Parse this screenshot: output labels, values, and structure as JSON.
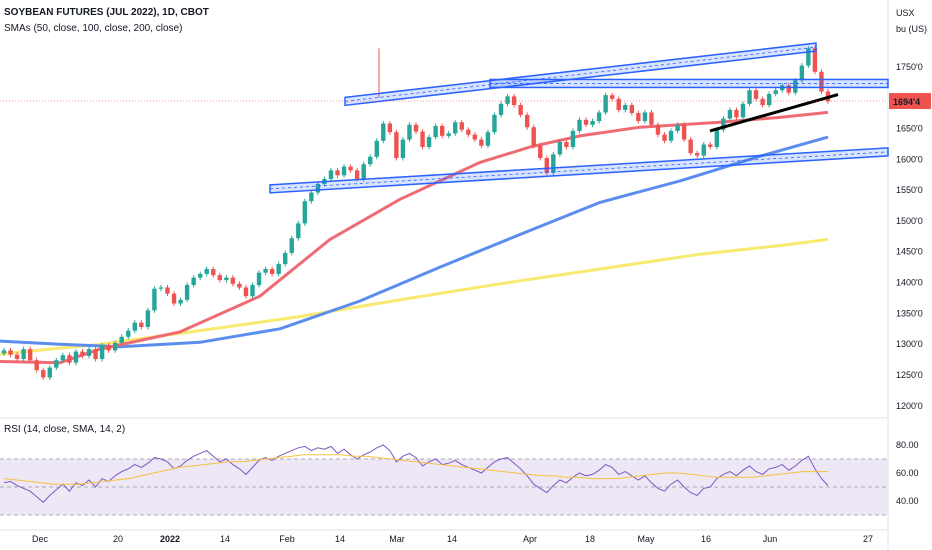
{
  "header": {
    "title": "SOYBEAN FUTURES (JUL 2022), 1D, CBOT",
    "sma_legend": "SMAs (50, close, 100, close, 200, close)",
    "rsi_legend": "RSI (14, close, SMA, 14, 2)"
  },
  "axis": {
    "currency": "USX",
    "unit": "bu (US)",
    "price_ticks": [
      "1750'0",
      "1700'0",
      "1650'0",
      "1600'0",
      "1550'0",
      "1500'0",
      "1450'0",
      "1400'0",
      "1350'0",
      "1300'0",
      "1250'0",
      "1200'0"
    ],
    "last_price": "1694'4",
    "rsi_ticks": [
      "80.00",
      "60.00",
      "40.00"
    ],
    "time_ticks": [
      "Dec",
      "20",
      "2022",
      "14",
      "Feb",
      "14",
      "Mar",
      "14",
      "Apr",
      "18",
      "May",
      "16",
      "Jun",
      "27"
    ]
  },
  "colors": {
    "up": "#26a69a",
    "down": "#ef5350",
    "sma50": "#ef6b73",
    "sma100": "#5b8def",
    "sma200": "#f7ea6e",
    "channel": "#2962ff",
    "rsi_line": "#7e57c2",
    "rsi_ma": "#f5c242",
    "rsi_band": "#ede7f6",
    "last_price_bg": "#ef5350"
  },
  "chart_data": {
    "type": "candlestick",
    "symbol": "SOYBEAN FUTURES (JUL 2022)",
    "timeframe": "1D",
    "exchange": "CBOT",
    "price_range": [
      1190,
      1800
    ],
    "last_price": 1694.5,
    "candles": [
      [
        1285,
        1290
      ],
      [
        1290,
        1283
      ],
      [
        1283,
        1276
      ],
      [
        1276,
        1292
      ],
      [
        1292,
        1274
      ],
      [
        1274,
        1258
      ],
      [
        1258,
        1246
      ],
      [
        1246,
        1262
      ],
      [
        1262,
        1274
      ],
      [
        1274,
        1282
      ],
      [
        1282,
        1270
      ],
      [
        1270,
        1288
      ],
      [
        1288,
        1281
      ],
      [
        1281,
        1292
      ],
      [
        1292,
        1276
      ],
      [
        1276,
        1298
      ],
      [
        1298,
        1290
      ],
      [
        1290,
        1302
      ],
      [
        1302,
        1312
      ],
      [
        1312,
        1322
      ],
      [
        1322,
        1335
      ],
      [
        1335,
        1328
      ],
      [
        1328,
        1355
      ],
      [
        1355,
        1390
      ],
      [
        1390,
        1392
      ],
      [
        1392,
        1382
      ],
      [
        1382,
        1366
      ],
      [
        1366,
        1372
      ],
      [
        1372,
        1396
      ],
      [
        1396,
        1408
      ],
      [
        1408,
        1414
      ],
      [
        1414,
        1422
      ],
      [
        1422,
        1412
      ],
      [
        1412,
        1404
      ],
      [
        1404,
        1408
      ],
      [
        1408,
        1398
      ],
      [
        1398,
        1392
      ],
      [
        1392,
        1378
      ],
      [
        1378,
        1396
      ],
      [
        1396,
        1416
      ],
      [
        1416,
        1422
      ],
      [
        1422,
        1414
      ],
      [
        1414,
        1430
      ],
      [
        1430,
        1448
      ],
      [
        1448,
        1472
      ],
      [
        1472,
        1496
      ],
      [
        1496,
        1532
      ],
      [
        1532,
        1546
      ],
      [
        1546,
        1560
      ],
      [
        1560,
        1568
      ],
      [
        1568,
        1582
      ],
      [
        1582,
        1574
      ],
      [
        1574,
        1588
      ],
      [
        1588,
        1582
      ],
      [
        1582,
        1568
      ],
      [
        1568,
        1592
      ],
      [
        1592,
        1604
      ],
      [
        1604,
        1630
      ],
      [
        1630,
        1658
      ],
      [
        1658,
        1644
      ],
      [
        1644,
        1602
      ],
      [
        1602,
        1632
      ],
      [
        1632,
        1656
      ],
      [
        1656,
        1645
      ],
      [
        1645,
        1620
      ],
      [
        1620,
        1636
      ],
      [
        1636,
        1654
      ],
      [
        1654,
        1638
      ],
      [
        1638,
        1642
      ],
      [
        1642,
        1660
      ],
      [
        1660,
        1648
      ],
      [
        1648,
        1640
      ],
      [
        1640,
        1632
      ],
      [
        1632,
        1622
      ],
      [
        1622,
        1644
      ],
      [
        1644,
        1672
      ],
      [
        1672,
        1690
      ],
      [
        1690,
        1702
      ],
      [
        1702,
        1688
      ],
      [
        1688,
        1672
      ],
      [
        1672,
        1652
      ],
      [
        1652,
        1622
      ],
      [
        1622,
        1602
      ],
      [
        1602,
        1578
      ],
      [
        1578,
        1608
      ],
      [
        1608,
        1628
      ],
      [
        1628,
        1620
      ],
      [
        1620,
        1646
      ],
      [
        1646,
        1664
      ],
      [
        1664,
        1656
      ],
      [
        1656,
        1662
      ],
      [
        1662,
        1676
      ],
      [
        1676,
        1704
      ],
      [
        1704,
        1698
      ],
      [
        1698,
        1680
      ],
      [
        1680,
        1688
      ],
      [
        1688,
        1675
      ],
      [
        1675,
        1662
      ],
      [
        1662,
        1676
      ],
      [
        1676,
        1656
      ],
      [
        1656,
        1640
      ],
      [
        1640,
        1630
      ],
      [
        1630,
        1646
      ],
      [
        1646,
        1656
      ],
      [
        1656,
        1632
      ],
      [
        1632,
        1610
      ],
      [
        1610,
        1606
      ],
      [
        1606,
        1624
      ],
      [
        1624,
        1620
      ],
      [
        1620,
        1648
      ],
      [
        1648,
        1666
      ],
      [
        1666,
        1680
      ],
      [
        1680,
        1668
      ],
      [
        1668,
        1690
      ],
      [
        1690,
        1712
      ],
      [
        1712,
        1698
      ],
      [
        1698,
        1688
      ],
      [
        1688,
        1706
      ],
      [
        1706,
        1712
      ],
      [
        1712,
        1720
      ],
      [
        1720,
        1708
      ],
      [
        1708,
        1728
      ],
      [
        1728,
        1752
      ],
      [
        1752,
        1780
      ],
      [
        1780,
        1742
      ],
      [
        1742,
        1710
      ],
      [
        1710,
        1694
      ]
    ],
    "sma50": [
      [
        0,
        1272
      ],
      [
        60,
        1270
      ],
      [
        100,
        1292
      ],
      [
        180,
        1320
      ],
      [
        260,
        1378
      ],
      [
        330,
        1470
      ],
      [
        400,
        1535
      ],
      [
        480,
        1595
      ],
      [
        530,
        1620
      ],
      [
        580,
        1638
      ],
      [
        640,
        1652
      ],
      [
        720,
        1660
      ],
      [
        780,
        1668
      ],
      [
        828,
        1676
      ]
    ],
    "sma100": [
      [
        0,
        1305
      ],
      [
        60,
        1300
      ],
      [
        120,
        1296
      ],
      [
        200,
        1303
      ],
      [
        280,
        1325
      ],
      [
        360,
        1370
      ],
      [
        440,
        1425
      ],
      [
        520,
        1478
      ],
      [
        600,
        1530
      ],
      [
        680,
        1565
      ],
      [
        760,
        1605
      ],
      [
        828,
        1636
      ]
    ],
    "sma200": [
      [
        0,
        1284
      ],
      [
        100,
        1300
      ],
      [
        200,
        1322
      ],
      [
        300,
        1345
      ],
      [
        400,
        1372
      ],
      [
        500,
        1398
      ],
      [
        600,
        1422
      ],
      [
        700,
        1446
      ],
      [
        780,
        1460
      ],
      [
        828,
        1470
      ]
    ],
    "annotations": [
      {
        "type": "channel",
        "from": [
          270,
          1552
        ],
        "to": [
          888,
          1612
        ]
      },
      {
        "type": "channel",
        "from": [
          345,
          1694
        ],
        "to": [
          816,
          1782
        ]
      },
      {
        "type": "horizontal_zone",
        "from": [
          490,
          1723
        ],
        "to": [
          888,
          1723
        ]
      },
      {
        "type": "trendline",
        "from": [
          710,
          1646
        ],
        "to": [
          838,
          1705
        ]
      }
    ],
    "rsi": {
      "range": [
        25,
        85
      ],
      "levels": [
        70,
        50,
        30
      ],
      "values": [
        53,
        54,
        51,
        49,
        47,
        43,
        39,
        44,
        48,
        52,
        47,
        53,
        51,
        55,
        50,
        56,
        54,
        58,
        61,
        63,
        66,
        64,
        67,
        71,
        70,
        68,
        63,
        65,
        69,
        72,
        74,
        76,
        72,
        68,
        70,
        66,
        63,
        59,
        64,
        69,
        71,
        69,
        72,
        74,
        76,
        78,
        79,
        76,
        78,
        77,
        79,
        74,
        77,
        73,
        70,
        73,
        75,
        78,
        80,
        76,
        68,
        72,
        74,
        71,
        65,
        68,
        70,
        66,
        67,
        69,
        66,
        64,
        62,
        60,
        64,
        68,
        70,
        71,
        67,
        63,
        58,
        52,
        49,
        46,
        51,
        55,
        53,
        57,
        60,
        58,
        59,
        62,
        66,
        64,
        59,
        61,
        58,
        55,
        58,
        53,
        49,
        47,
        52,
        55,
        50,
        46,
        44,
        49,
        50,
        56,
        59,
        61,
        58,
        62,
        65,
        61,
        59,
        63,
        64,
        66,
        62,
        65,
        69,
        72,
        63,
        56,
        51
      ],
      "ma": [
        56,
        55,
        54,
        53,
        52,
        52,
        52,
        53,
        54,
        55,
        56,
        58,
        60,
        62,
        64,
        65,
        66,
        67,
        68,
        68,
        69,
        70,
        71,
        72,
        73,
        73,
        73,
        73,
        72,
        72,
        71,
        70,
        69,
        68,
        67,
        66,
        65,
        64,
        63,
        62,
        61,
        60,
        59,
        58,
        58,
        57,
        57,
        56,
        56,
        56,
        57,
        58,
        59,
        60,
        60,
        59,
        58,
        57,
        57,
        57,
        57,
        58,
        59,
        60,
        61,
        61,
        61
      ]
    }
  }
}
